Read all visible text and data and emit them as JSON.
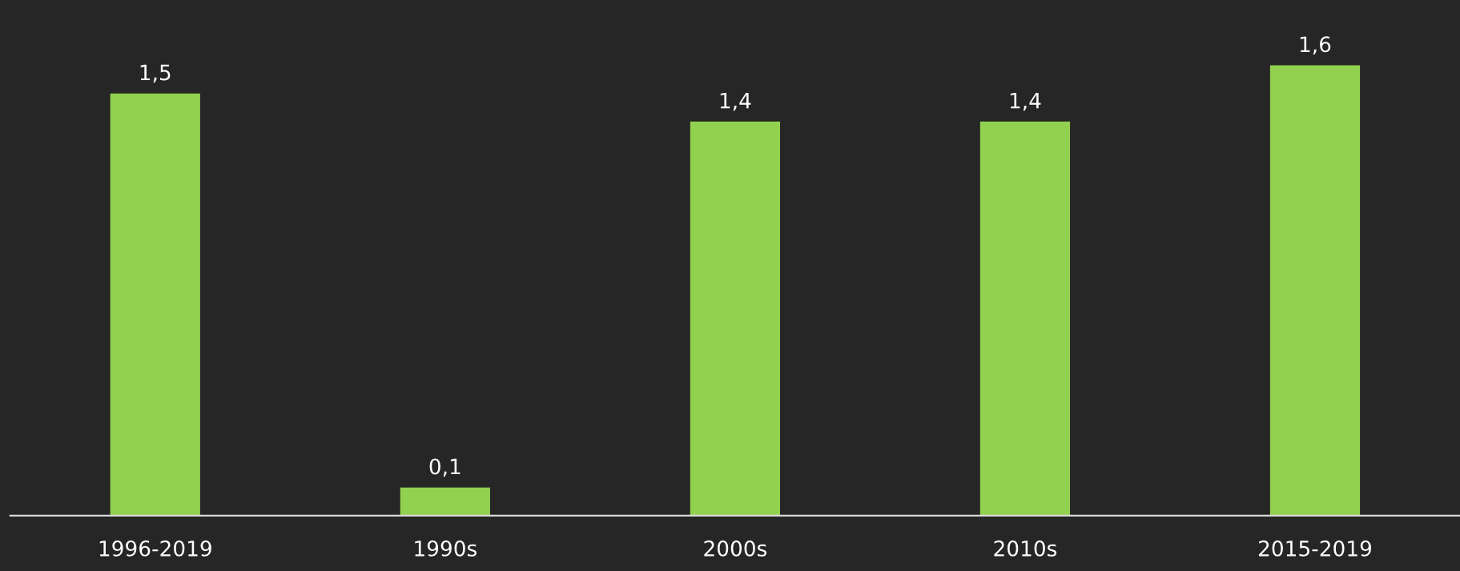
{
  "chart_data": {
    "type": "bar",
    "categories": [
      "1996-2019",
      "1990s",
      "2000s",
      "2010s",
      "2015-2019"
    ],
    "values": [
      1.5,
      0.1,
      1.4,
      1.4,
      1.6
    ],
    "value_labels": [
      "1,5",
      "0,1",
      "1,4",
      "1,4",
      "1,6"
    ],
    "color": "#92d050",
    "grid": false,
    "legend": false
  }
}
